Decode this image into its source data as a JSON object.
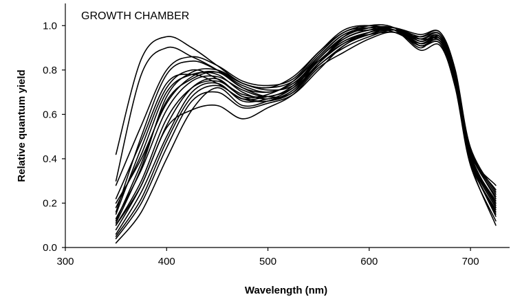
{
  "chart_data": {
    "type": "line",
    "annotation": "GROWTH CHAMBER",
    "xlabel": "Wavelength (nm)",
    "ylabel": "Relative quantum yield",
    "xlim": [
      300,
      740
    ],
    "ylim": [
      0,
      1.1
    ],
    "xticks": [
      300,
      400,
      500,
      600,
      700
    ],
    "yticks": [
      0.0,
      0.2,
      0.4,
      0.6,
      0.8,
      1.0
    ],
    "ytick_labels": [
      "0.0",
      "0.2",
      "0.4",
      "0.6",
      "0.8",
      "1.0"
    ],
    "grid": false,
    "legend": "none",
    "line_color": "#000000",
    "x": [
      350,
      375,
      400,
      425,
      450,
      475,
      500,
      525,
      550,
      575,
      600,
      625,
      650,
      670,
      685,
      700,
      725
    ],
    "series": [
      {
        "values": [
          0.42,
          0.85,
          0.95,
          0.9,
          0.82,
          0.74,
          0.72,
          0.75,
          0.86,
          0.96,
          0.99,
          0.99,
          0.96,
          0.97,
          0.8,
          0.45,
          0.25
        ]
      },
      {
        "values": [
          0.3,
          0.78,
          0.9,
          0.86,
          0.8,
          0.72,
          0.7,
          0.74,
          0.85,
          0.95,
          0.99,
          0.99,
          0.95,
          0.96,
          0.78,
          0.44,
          0.22
        ]
      },
      {
        "values": [
          0.28,
          0.55,
          0.8,
          0.86,
          0.82,
          0.75,
          0.73,
          0.76,
          0.88,
          0.97,
          1.0,
          0.98,
          0.94,
          0.95,
          0.77,
          0.42,
          0.2
        ]
      },
      {
        "values": [
          0.2,
          0.4,
          0.65,
          0.77,
          0.79,
          0.72,
          0.68,
          0.7,
          0.85,
          0.94,
          0.98,
          0.99,
          0.93,
          0.94,
          0.76,
          0.4,
          0.18
        ]
      },
      {
        "values": [
          0.18,
          0.42,
          0.7,
          0.78,
          0.78,
          0.7,
          0.67,
          0.72,
          0.84,
          0.93,
          0.97,
          0.99,
          0.92,
          0.93,
          0.75,
          0.41,
          0.21
        ]
      },
      {
        "values": [
          0.15,
          0.45,
          0.72,
          0.8,
          0.76,
          0.68,
          0.66,
          0.71,
          0.83,
          0.95,
          1.0,
          0.99,
          0.9,
          0.95,
          0.74,
          0.39,
          0.15
        ]
      },
      {
        "values": [
          0.13,
          0.35,
          0.62,
          0.75,
          0.77,
          0.71,
          0.68,
          0.73,
          0.86,
          0.96,
          0.98,
          0.98,
          0.91,
          0.92,
          0.73,
          0.38,
          0.17
        ]
      },
      {
        "values": [
          0.12,
          0.38,
          0.66,
          0.76,
          0.79,
          0.73,
          0.7,
          0.74,
          0.84,
          0.93,
          0.96,
          0.97,
          0.94,
          0.96,
          0.78,
          0.43,
          0.23
        ]
      },
      {
        "values": [
          0.1,
          0.3,
          0.58,
          0.72,
          0.75,
          0.69,
          0.68,
          0.72,
          0.82,
          0.91,
          0.97,
          0.99,
          0.93,
          0.95,
          0.76,
          0.41,
          0.19
        ]
      },
      {
        "values": [
          0.08,
          0.28,
          0.55,
          0.72,
          0.76,
          0.68,
          0.69,
          0.75,
          0.87,
          0.97,
          0.99,
          0.97,
          0.92,
          0.94,
          0.75,
          0.4,
          0.14
        ]
      },
      {
        "values": [
          0.06,
          0.25,
          0.5,
          0.7,
          0.74,
          0.66,
          0.67,
          0.7,
          0.83,
          0.94,
          0.98,
          0.98,
          0.89,
          0.91,
          0.72,
          0.37,
          0.12
        ]
      },
      {
        "values": [
          0.04,
          0.2,
          0.45,
          0.66,
          0.7,
          0.63,
          0.65,
          0.69,
          0.8,
          0.91,
          0.96,
          0.99,
          0.91,
          0.92,
          0.73,
          0.38,
          0.1
        ]
      },
      {
        "values": [
          0.02,
          0.16,
          0.4,
          0.62,
          0.72,
          0.64,
          0.66,
          0.71,
          0.83,
          0.92,
          0.97,
          0.98,
          0.93,
          0.94,
          0.74,
          0.39,
          0.16
        ]
      },
      {
        "values": [
          0.1,
          0.28,
          0.54,
          0.62,
          0.64,
          0.58,
          0.63,
          0.69,
          0.81,
          0.88,
          0.94,
          0.97,
          0.91,
          0.93,
          0.74,
          0.4,
          0.2
        ]
      },
      {
        "values": [
          0.22,
          0.48,
          0.74,
          0.78,
          0.74,
          0.67,
          0.66,
          0.7,
          0.82,
          0.9,
          0.95,
          0.98,
          0.94,
          0.96,
          0.77,
          0.43,
          0.26
        ]
      },
      {
        "values": [
          0.16,
          0.5,
          0.78,
          0.84,
          0.8,
          0.74,
          0.72,
          0.77,
          0.88,
          0.98,
          1.0,
          0.97,
          0.95,
          0.97,
          0.79,
          0.44,
          0.24
        ]
      },
      {
        "values": [
          0.11,
          0.36,
          0.68,
          0.79,
          0.8,
          0.74,
          0.71,
          0.73,
          0.84,
          0.92,
          0.96,
          0.98,
          0.92,
          0.94,
          0.76,
          0.42,
          0.28
        ]
      },
      {
        "values": [
          0.05,
          0.22,
          0.48,
          0.68,
          0.73,
          0.67,
          0.68,
          0.72,
          0.85,
          0.95,
          0.99,
          0.99,
          0.94,
          0.93,
          0.75,
          0.4,
          0.18
        ]
      }
    ]
  }
}
